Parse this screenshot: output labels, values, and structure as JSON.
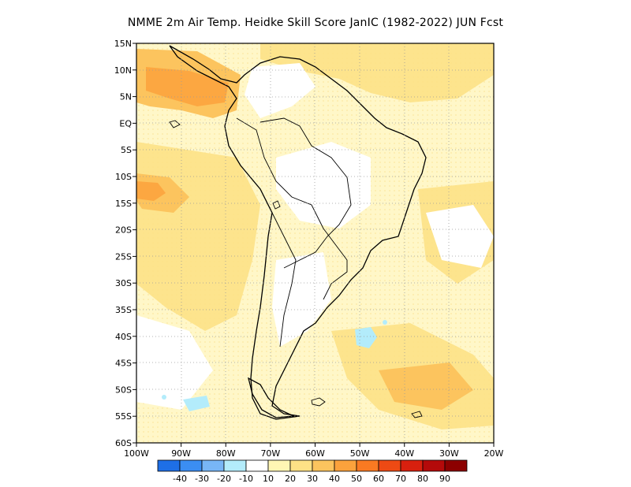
{
  "title": "NMME  2m Air Temp. Heidke Skill Score JanIC (1982-2022) JUN Fcst",
  "map": {
    "lat_labels": [
      "15N",
      "10N",
      "5N",
      "EQ",
      "5S",
      "10S",
      "15S",
      "20S",
      "25S",
      "30S",
      "35S",
      "40S",
      "45S",
      "50S",
      "55S",
      "60S"
    ],
    "lat_values": [
      15,
      10,
      5,
      0,
      -5,
      -10,
      -15,
      -20,
      -25,
      -30,
      -35,
      -40,
      -45,
      -50,
      -55,
      -60
    ],
    "lon_labels": [
      "100W",
      "90W",
      "80W",
      "70W",
      "60W",
      "50W",
      "40W",
      "30W",
      "20W"
    ],
    "lon_values": [
      -100,
      -90,
      -80,
      -70,
      -60,
      -50,
      -40,
      -30,
      -20
    ],
    "extent": {
      "lon": [
        -100,
        -20
      ],
      "lat": [
        -60,
        15
      ]
    },
    "grid": "dotted"
  },
  "colorbar": {
    "labels": [
      "-40",
      "-30",
      "-20",
      "-10",
      "10",
      "20",
      "30",
      "40",
      "50",
      "60",
      "70",
      "80",
      "90"
    ],
    "colors": [
      "#1e6fe6",
      "#3b8ef2",
      "#78b6f6",
      "#b3ecfb",
      "#ffffff",
      "#fff6b4",
      "#fde186",
      "#fcc45e",
      "#fba23c",
      "#f97a22",
      "#ee4a14",
      "#d8200e",
      "#b40a0a",
      "#8c0000"
    ]
  },
  "anomaly_regions": [
    {
      "lon": -89,
      "lat": 8,
      "value": 40
    },
    {
      "lon": -97,
      "lat": -12.5,
      "value": 40
    },
    {
      "lon": -58,
      "lat": 10,
      "value": 30
    },
    {
      "lon": -48,
      "lat": -40,
      "value": -10
    },
    {
      "lon": -84,
      "lat": -54,
      "value": -10
    }
  ]
}
